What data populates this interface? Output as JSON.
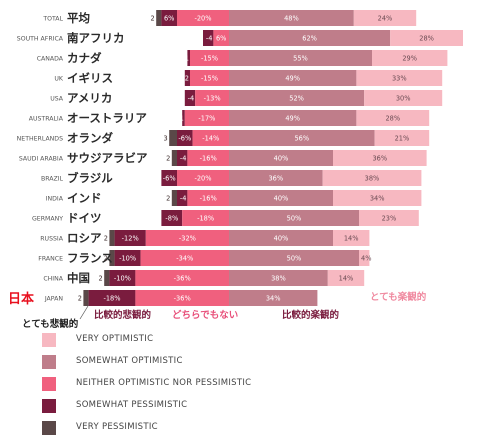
{
  "chart_data": {
    "type": "bar",
    "stacked": true,
    "categories": [
      "TOTAL",
      "SOUTH AFRICA",
      "CANADA",
      "UK",
      "USA",
      "AUSTRALIA",
      "NETHERLANDS",
      "SAUDI ARABIA",
      "BRAZIL",
      "INDIA",
      "GERMANY",
      "RUSSIA",
      "FRANCE",
      "CHINA",
      "JAPAN"
    ],
    "categories_ja": [
      "平均",
      "南アフリカ",
      "カナダ",
      "イギリス",
      "アメリカ",
      "オーストラリア",
      "オランダ",
      "サウジアラビア",
      "ブラジル",
      "インド",
      "ドイツ",
      "ロシア",
      "フランス",
      "中国",
      ""
    ],
    "series": [
      {
        "name": "VERY PESSIMISTIC",
        "color": "#5a4848",
        "values": [
          2,
          0,
          0,
          0,
          0,
          0,
          3,
          2,
          0,
          2,
          0,
          2,
          2,
          2,
          2
        ]
      },
      {
        "name": "SOMEWHAT PESSIMISTIC",
        "color": "#7a1c3e",
        "values": [
          6,
          4,
          1,
          2,
          4,
          1,
          6,
          4,
          6,
          4,
          8,
          12,
          10,
          10,
          18
        ]
      },
      {
        "name": "NEITHER OPTIMISTIC NOR PESSIMISTIC",
        "color": "#f0607e",
        "values": [
          20,
          6,
          15,
          15,
          13,
          17,
          14,
          16,
          20,
          16,
          18,
          32,
          34,
          36,
          36
        ]
      },
      {
        "name": "SOMEWHAT OPTIMISTIC",
        "color": "#bf7d8a",
        "values": [
          48,
          62,
          55,
          49,
          52,
          49,
          56,
          40,
          36,
          40,
          50,
          40,
          50,
          38,
          34
        ]
      },
      {
        "name": "VERY OPTIMISTIC",
        "color": "#f7b8c1",
        "values": [
          24,
          28,
          29,
          33,
          30,
          28,
          21,
          36,
          38,
          34,
          23,
          14,
          4,
          14,
          0
        ]
      }
    ],
    "data_labels": [
      [
        "2",
        "6%",
        "-20%",
        "48%",
        "24%"
      ],
      [
        "",
        "-4",
        "6%",
        "62%",
        "28%"
      ],
      [
        "",
        "1",
        "-15%",
        "55%",
        "29%"
      ],
      [
        "",
        "2",
        "-15%",
        "49%",
        "33%"
      ],
      [
        "",
        "-4",
        "-13%",
        "52%",
        "30%"
      ],
      [
        "",
        "1",
        "-17%",
        "49%",
        "28%"
      ],
      [
        "3",
        "-6%",
        "-14%",
        "56%",
        "21%"
      ],
      [
        "2",
        "-4",
        "-16%",
        "40%",
        "36%"
      ],
      [
        "",
        "-6%",
        "-20%",
        "36%",
        "38%"
      ],
      [
        "2",
        "-4",
        "-16%",
        "40%",
        "34%"
      ],
      [
        "",
        "-8%",
        "-18%",
        "50%",
        "23%"
      ],
      [
        "2",
        "-12%",
        "-32%",
        "40%",
        "14%"
      ],
      [
        "2",
        "-10%",
        "-34%",
        "50%",
        "4%"
      ],
      [
        "2",
        "-10%",
        "-36%",
        "38%",
        "14%"
      ],
      [
        "2",
        "-18%",
        "-36%",
        "34%",
        ""
      ]
    ],
    "ylabel": "",
    "xlabel": "",
    "legend": "bottom-left",
    "grid": false
  },
  "annotations": {
    "japan_label": "日本",
    "very_pessimistic": "とても悲観的",
    "somewhat_pessimistic": "比較的悲観的",
    "neither": "どちらでもない",
    "somewhat_optimistic": "比較的楽観的",
    "very_optimistic": "とても楽観的"
  },
  "colors": {
    "annotation_dark": "#7a1c3e",
    "annotation_pink": "#e8507a",
    "annotation_light": "#f08aa0",
    "japan_red": "#e8101e"
  }
}
